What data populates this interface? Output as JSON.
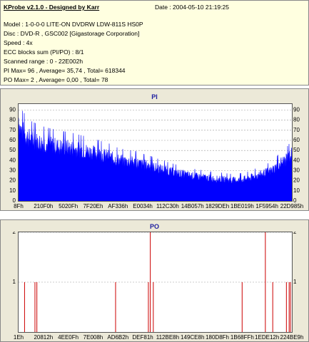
{
  "info": {
    "title": "KProbe v2.1.0 - Designed by Karr",
    "date": "Date : 2004-05-10 21:19:25",
    "model": "Model : 1-0-0-0 LITE-ON DVDRW LDW-811S   HS0P",
    "disc": "Disc : DVD-R , GSC002 [Gigastorage Corporation]",
    "speed": "Speed : 4x",
    "ecc": "ECC blocks sum (PI/PO) : 8/1",
    "range": "Scanned range : 0 - 22E002h",
    "pi_stats": "PI Max= 96 , Average= 35,74 , Total= 618344",
    "po_stats": "PO Max= 2 , Average= 0,00 , Total= 78"
  },
  "colors": {
    "pi_fill": "#0000ff",
    "po_line": "#cc0000",
    "panel_bg": "#ece9d8",
    "info_bg": "#ffffe0",
    "title": "#2020a0"
  },
  "chart_data": [
    {
      "type": "area",
      "title": "PI",
      "ylim": [
        0,
        96
      ],
      "yticks": [
        "0",
        "10",
        "20",
        "30",
        "40",
        "50",
        "60",
        "70",
        "80",
        "90"
      ],
      "xticks": [
        "8Fh",
        "210F0h",
        "5020Fh",
        "7F20Eh",
        "AF336h",
        "E0034h",
        "112C30h",
        "14B057h",
        "1829DEh",
        "1BE019h",
        "1F5954h",
        "22D985h"
      ],
      "grid": true,
      "profile": [
        [
          0,
          96
        ],
        [
          0.5,
          84
        ],
        [
          1,
          81
        ],
        [
          2,
          78
        ],
        [
          3,
          74
        ],
        [
          4,
          72
        ],
        [
          5,
          70
        ],
        [
          6,
          69
        ],
        [
          8,
          67
        ],
        [
          10,
          65
        ],
        [
          12,
          64
        ],
        [
          15,
          62
        ],
        [
          18,
          61
        ],
        [
          20,
          60
        ],
        [
          23,
          58
        ],
        [
          25,
          57
        ],
        [
          28,
          55
        ],
        [
          30,
          53
        ],
        [
          33,
          51
        ],
        [
          35,
          48
        ],
        [
          38,
          46
        ],
        [
          40,
          45
        ],
        [
          43,
          44
        ],
        [
          45,
          42
        ],
        [
          48,
          40
        ],
        [
          50,
          38
        ],
        [
          53,
          36
        ],
        [
          55,
          34
        ],
        [
          58,
          32
        ],
        [
          60,
          31
        ],
        [
          63,
          29
        ],
        [
          65,
          28
        ],
        [
          68,
          27
        ],
        [
          70,
          26
        ],
        [
          73,
          25
        ],
        [
          75,
          25
        ],
        [
          77,
          24
        ],
        [
          78,
          24
        ],
        [
          80,
          24
        ],
        [
          82,
          25
        ],
        [
          84,
          26
        ],
        [
          86,
          28
        ],
        [
          88,
          30
        ],
        [
          90,
          32
        ],
        [
          92,
          34
        ],
        [
          94,
          38
        ],
        [
          96,
          44
        ],
        [
          98,
          47
        ],
        [
          100,
          54
        ]
      ]
    },
    {
      "type": "bar",
      "title": "PO",
      "ylim": [
        0,
        2
      ],
      "yticks": [
        "1",
        "2"
      ],
      "xticks": [
        "1Eh",
        "20812h",
        "4EE0Fh",
        "7E008h",
        "AD6B2h",
        "DEF81h",
        "112BE8h",
        "149CE8h",
        "180D8Fh",
        "1B68FFh",
        "1EDE12h",
        "224BE9h"
      ],
      "grid": true,
      "spikes": [
        [
          2.2,
          1
        ],
        [
          6.0,
          1
        ],
        [
          6.7,
          1
        ],
        [
          35.5,
          1
        ],
        [
          47.5,
          1
        ],
        [
          48.2,
          2
        ],
        [
          49.3,
          1
        ],
        [
          81.8,
          1
        ],
        [
          90.3,
          2
        ],
        [
          93.0,
          1
        ],
        [
          98.0,
          1
        ],
        [
          99.0,
          1
        ],
        [
          99.5,
          1
        ]
      ]
    }
  ]
}
